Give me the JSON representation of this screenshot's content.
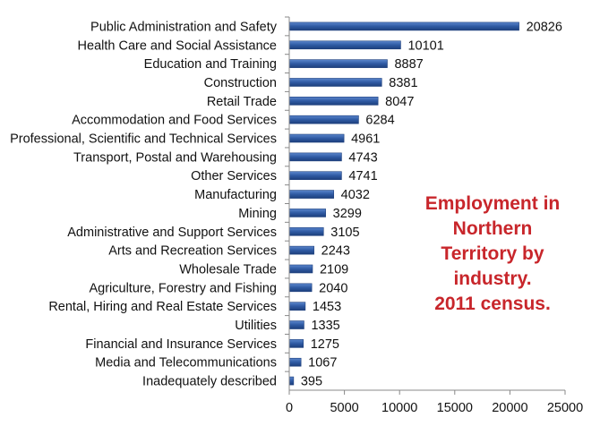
{
  "chart_data": {
    "type": "bar",
    "orientation": "horizontal",
    "categories": [
      "Public Administration and Safety",
      "Health Care and Social Assistance",
      "Education and Training",
      "Construction",
      "Retail Trade",
      "Accommodation and Food Services",
      "Professional, Scientific and Technical Services",
      "Transport, Postal and Warehousing",
      "Other Services",
      "Manufacturing",
      "Mining",
      "Administrative and Support Services",
      "Arts and Recreation Services",
      "Wholesale Trade",
      "Agriculture, Forestry and Fishing",
      "Rental, Hiring and Real Estate Services",
      "Utilities",
      "Financial and Insurance Services",
      "Media and Telecommunications",
      "Inadequately described"
    ],
    "values": [
      20826,
      10101,
      8887,
      8381,
      8047,
      6284,
      4961,
      4743,
      4741,
      4032,
      3299,
      3105,
      2243,
      2109,
      2040,
      1453,
      1335,
      1275,
      1067,
      395
    ],
    "xlim": [
      0,
      25000
    ],
    "xticks": [
      0,
      5000,
      10000,
      15000,
      20000,
      25000
    ],
    "grid": false,
    "bar_color": "#2f5aa3",
    "annotation": {
      "lines": [
        "Employment in",
        "Northern",
        "Territory by",
        "industry.",
        "2011 census."
      ],
      "color": "#c8262b"
    }
  }
}
